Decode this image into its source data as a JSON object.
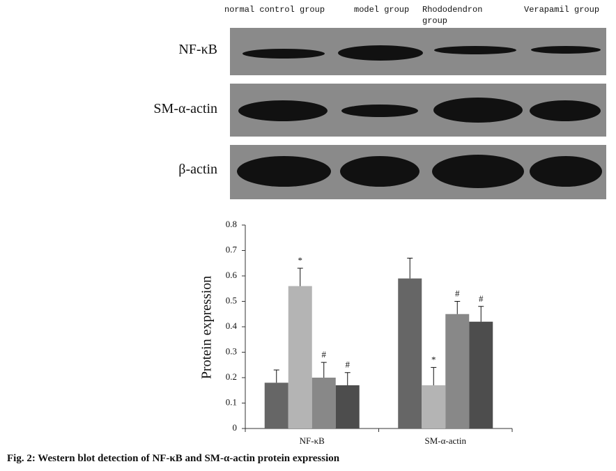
{
  "blot": {
    "columns": [
      "normal control group",
      "model group",
      "Rhododendron group",
      "Verapamil group"
    ],
    "rows": [
      "NF-κB",
      "SM-α-actin",
      "β-actin"
    ]
  },
  "chart_data": {
    "type": "bar",
    "categories": [
      "NF-κB",
      "SM-α-actin"
    ],
    "series": [
      {
        "color": "#666666",
        "values": [
          0.18,
          0.59
        ],
        "errors": [
          0.05,
          0.08
        ],
        "marks": [
          null,
          null
        ]
      },
      {
        "color": "#b4b4b4",
        "values": [
          0.56,
          0.17
        ],
        "errors": [
          0.07,
          0.07
        ],
        "marks": [
          "*",
          "*"
        ]
      },
      {
        "color": "#888888",
        "values": [
          0.2,
          0.45
        ],
        "errors": [
          0.06,
          0.05
        ],
        "marks": [
          "#",
          "#"
        ]
      },
      {
        "color": "#4d4d4d",
        "values": [
          0.17,
          0.42
        ],
        "errors": [
          0.05,
          0.06
        ],
        "marks": [
          "#",
          "#"
        ]
      }
    ],
    "ylim": [
      0,
      0.8
    ],
    "yticks": [
      0,
      0.1,
      0.2,
      0.3,
      0.4,
      0.5,
      0.6,
      0.7,
      0.8
    ],
    "ylabel": "Protein expression",
    "grid": false
  },
  "caption": "Fig. 2: Western blot detection of NF-κB and SM-α-actin protein expression"
}
